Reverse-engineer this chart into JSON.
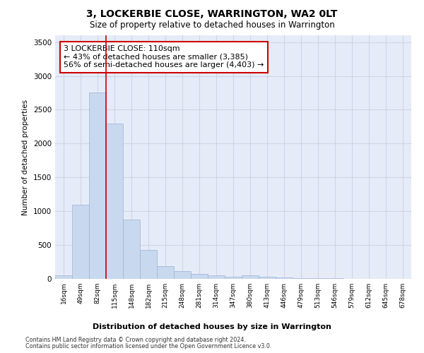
{
  "title": "3, LOCKERBIE CLOSE, WARRINGTON, WA2 0LT",
  "subtitle": "Size of property relative to detached houses in Warrington",
  "xlabel": "Distribution of detached houses by size in Warrington",
  "ylabel": "Number of detached properties",
  "categories": [
    "16sqm",
    "49sqm",
    "82sqm",
    "115sqm",
    "148sqm",
    "182sqm",
    "215sqm",
    "248sqm",
    "281sqm",
    "314sqm",
    "347sqm",
    "380sqm",
    "413sqm",
    "446sqm",
    "479sqm",
    "513sqm",
    "546sqm",
    "579sqm",
    "612sqm",
    "645sqm",
    "678sqm"
  ],
  "values": [
    50,
    1100,
    2750,
    2300,
    880,
    430,
    185,
    110,
    75,
    50,
    30,
    55,
    30,
    20,
    10,
    8,
    6,
    5,
    4,
    3,
    2
  ],
  "bar_color": "#c8d8ee",
  "bar_edge_color": "#9ab4d4",
  "redline_x": 3,
  "annotation_text": "3 LOCKERBIE CLOSE: 110sqm\n← 43% of detached houses are smaller (3,385)\n56% of semi-detached houses are larger (4,403) →",
  "annotation_box_color": "#ffffff",
  "annotation_box_edge": "#cc0000",
  "redline_color": "#cc0000",
  "ylim": [
    0,
    3600
  ],
  "yticks": [
    0,
    500,
    1000,
    1500,
    2000,
    2500,
    3000,
    3500
  ],
  "grid_color": "#cdd5e5",
  "background_color": "#e6ecf7",
  "footer1": "Contains HM Land Registry data © Crown copyright and database right 2024.",
  "footer2": "Contains public sector information licensed under the Open Government Licence v3.0."
}
